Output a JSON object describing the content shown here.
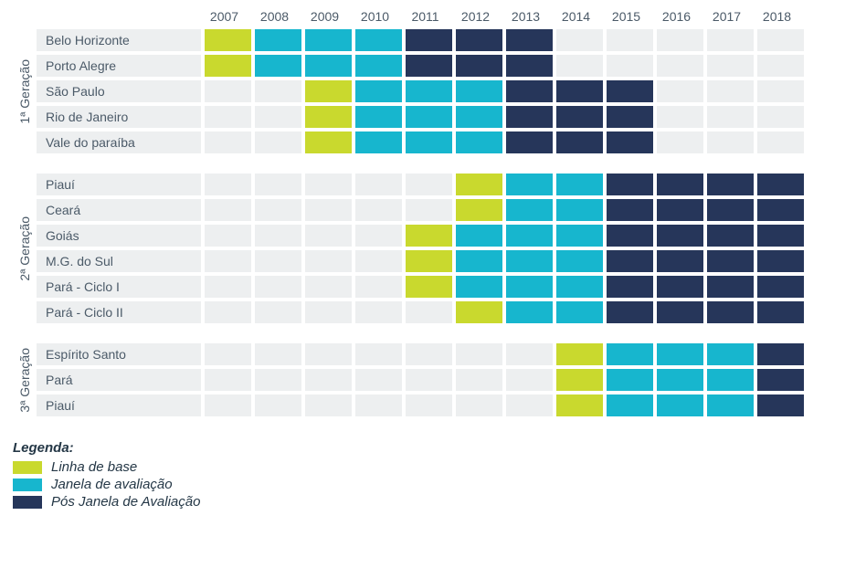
{
  "colors": {
    "empty": "#edeff0",
    "base": "#c9d92e",
    "janela": "#17b6ce",
    "pos": "#26365a",
    "text": "#4b5a68",
    "legend_text": "#243746"
  },
  "years": [
    2007,
    2008,
    2009,
    2010,
    2011,
    2012,
    2013,
    2014,
    2015,
    2016,
    2017,
    2018
  ],
  "groups": [
    {
      "label": "1ª Geração",
      "rows": [
        {
          "label": "Belo Horizonte",
          "cells": [
            "base",
            "janela",
            "janela",
            "janela",
            "pos",
            "pos",
            "pos",
            "empty",
            "empty",
            "empty",
            "empty",
            "empty"
          ]
        },
        {
          "label": "Porto Alegre",
          "cells": [
            "base",
            "janela",
            "janela",
            "janela",
            "pos",
            "pos",
            "pos",
            "empty",
            "empty",
            "empty",
            "empty",
            "empty"
          ]
        },
        {
          "label": "São Paulo",
          "cells": [
            "empty",
            "empty",
            "base",
            "janela",
            "janela",
            "janela",
            "pos",
            "pos",
            "pos",
            "empty",
            "empty",
            "empty"
          ]
        },
        {
          "label": "Rio de Janeiro",
          "cells": [
            "empty",
            "empty",
            "base",
            "janela",
            "janela",
            "janela",
            "pos",
            "pos",
            "pos",
            "empty",
            "empty",
            "empty"
          ]
        },
        {
          "label": "Vale do paraíba",
          "cells": [
            "empty",
            "empty",
            "base",
            "janela",
            "janela",
            "janela",
            "pos",
            "pos",
            "pos",
            "empty",
            "empty",
            "empty"
          ]
        }
      ]
    },
    {
      "label": "2ª Geração",
      "rows": [
        {
          "label": "Piauí",
          "cells": [
            "empty",
            "empty",
            "empty",
            "empty",
            "empty",
            "base",
            "janela",
            "janela",
            "pos",
            "pos",
            "pos",
            "pos"
          ]
        },
        {
          "label": "Ceará",
          "cells": [
            "empty",
            "empty",
            "empty",
            "empty",
            "empty",
            "base",
            "janela",
            "janela",
            "pos",
            "pos",
            "pos",
            "pos"
          ]
        },
        {
          "label": "Goiás",
          "cells": [
            "empty",
            "empty",
            "empty",
            "empty",
            "base",
            "janela",
            "janela",
            "janela",
            "pos",
            "pos",
            "pos",
            "pos"
          ]
        },
        {
          "label": "M.G. do Sul",
          "cells": [
            "empty",
            "empty",
            "empty",
            "empty",
            "base",
            "janela",
            "janela",
            "janela",
            "pos",
            "pos",
            "pos",
            "pos"
          ]
        },
        {
          "label": "Pará - Ciclo I",
          "cells": [
            "empty",
            "empty",
            "empty",
            "empty",
            "base",
            "janela",
            "janela",
            "janela",
            "pos",
            "pos",
            "pos",
            "pos"
          ]
        },
        {
          "label": "Pará - Ciclo II",
          "cells": [
            "empty",
            "empty",
            "empty",
            "empty",
            "empty",
            "base",
            "janela",
            "janela",
            "pos",
            "pos",
            "pos",
            "pos"
          ]
        }
      ]
    },
    {
      "label": "3ª Geração",
      "rows": [
        {
          "label": "Espírito Santo",
          "cells": [
            "empty",
            "empty",
            "empty",
            "empty",
            "empty",
            "empty",
            "empty",
            "base",
            "janela",
            "janela",
            "janela",
            "pos"
          ]
        },
        {
          "label": "Pará",
          "cells": [
            "empty",
            "empty",
            "empty",
            "empty",
            "empty",
            "empty",
            "empty",
            "base",
            "janela",
            "janela",
            "janela",
            "pos"
          ]
        },
        {
          "label": "Piauí",
          "cells": [
            "empty",
            "empty",
            "empty",
            "empty",
            "empty",
            "empty",
            "empty",
            "base",
            "janela",
            "janela",
            "janela",
            "pos"
          ]
        }
      ]
    }
  ],
  "legend": {
    "title": "Legenda:",
    "items": [
      {
        "key": "base",
        "label": "Linha de base"
      },
      {
        "key": "janela",
        "label": "Janela de avaliação"
      },
      {
        "key": "pos",
        "label": "Pós Janela de Avaliação"
      }
    ]
  }
}
